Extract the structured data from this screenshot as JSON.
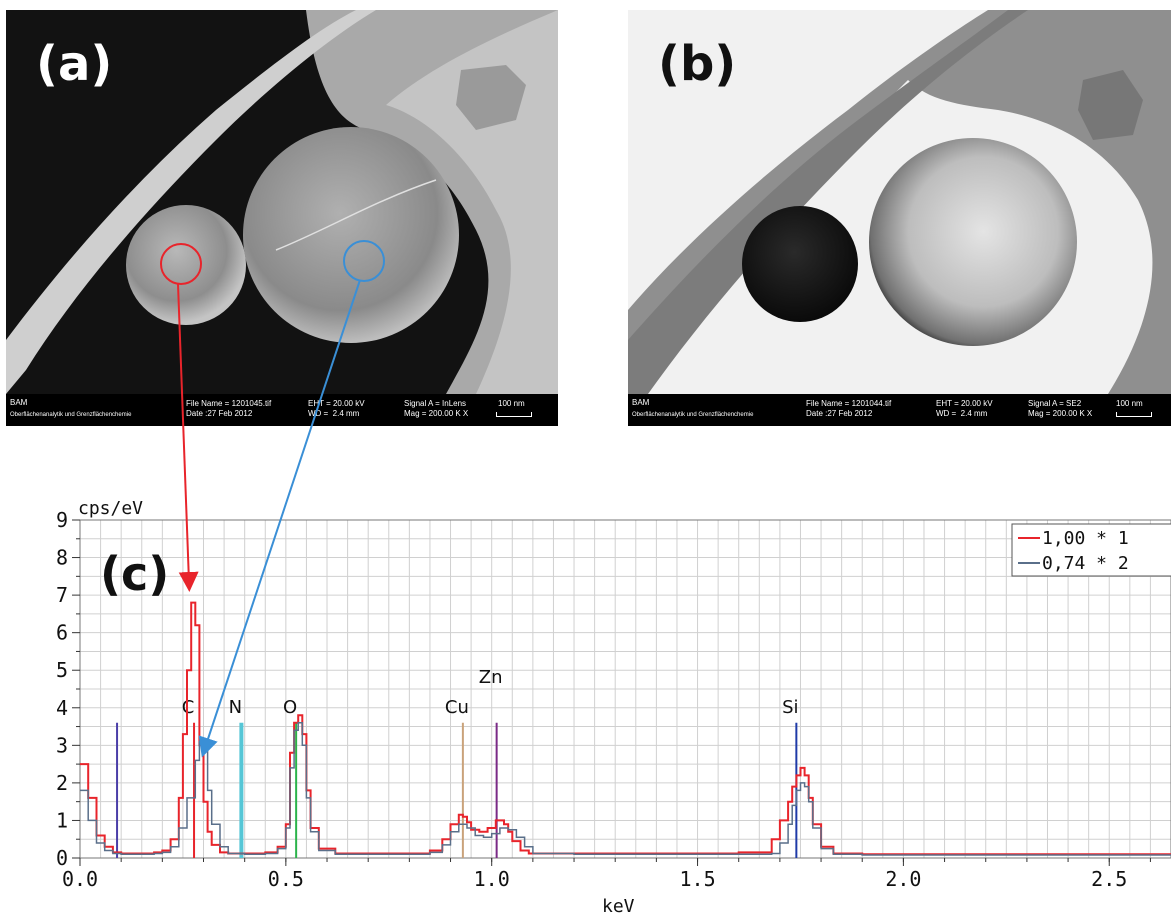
{
  "panels": {
    "a": {
      "label": "(a)",
      "org": "BAM",
      "dept": "Oberflächenanalytik und Grenzflächenchemie",
      "file": "File Name = 1201045.tif",
      "date": "Date :27 Feb 2012",
      "eht": "EHT = 20.00 kV",
      "wd": "WD =  2.4 mm",
      "signal": "Signal A = InLens",
      "mag": "Mag = 200.00 K X",
      "scale": "100 nm"
    },
    "b": {
      "label": "(b)",
      "org": "BAM",
      "dept": "Oberflächenanalytik und Grenzflächenchemie",
      "file": "File Name = 1201044.tif",
      "date": "Date :27 Feb 2012",
      "eht": "EHT = 20.00 kV",
      "wd": "WD =  2.4 mm",
      "signal": "Signal A = SE2",
      "mag": "Mag = 200.00 K X",
      "scale": "100 nm"
    }
  },
  "colors": {
    "spectrum1": "#e8242b",
    "spectrum2": "#5a6f8a",
    "arrow_red": "#e8242b",
    "arrow_blue": "#3a8fd6"
  },
  "chart_data": {
    "type": "line",
    "panel_label": "(c)",
    "ylabel": "cps/eV",
    "xlabel": "keV",
    "xlim": [
      0.0,
      2.65
    ],
    "ylim": [
      0,
      9
    ],
    "xticks": [
      "0.0",
      "0.5",
      "1.0",
      "1.5",
      "2.0",
      "2.5"
    ],
    "yticks": [
      "0",
      "1",
      "2",
      "3",
      "4",
      "5",
      "6",
      "7",
      "8",
      "9"
    ],
    "grid": true,
    "legend_position": "top-right",
    "series": [
      {
        "name": "1,00 * 1",
        "color": "#e8242b",
        "x": [
          0.0,
          0.02,
          0.04,
          0.06,
          0.08,
          0.1,
          0.12,
          0.15,
          0.18,
          0.2,
          0.22,
          0.24,
          0.25,
          0.26,
          0.27,
          0.28,
          0.29,
          0.3,
          0.31,
          0.32,
          0.34,
          0.36,
          0.4,
          0.45,
          0.48,
          0.5,
          0.51,
          0.52,
          0.53,
          0.54,
          0.55,
          0.56,
          0.58,
          0.62,
          0.7,
          0.8,
          0.85,
          0.88,
          0.9,
          0.92,
          0.93,
          0.94,
          0.95,
          0.97,
          0.99,
          1.01,
          1.03,
          1.04,
          1.05,
          1.07,
          1.09,
          1.12,
          1.2,
          1.4,
          1.6,
          1.68,
          1.7,
          1.72,
          1.73,
          1.74,
          1.75,
          1.76,
          1.77,
          1.78,
          1.8,
          1.83,
          1.9,
          2.2,
          2.5,
          2.65
        ],
        "y": [
          2.5,
          1.6,
          0.6,
          0.3,
          0.15,
          0.12,
          0.12,
          0.12,
          0.15,
          0.2,
          0.5,
          1.6,
          3.3,
          5.0,
          6.8,
          6.2,
          3.0,
          1.5,
          0.7,
          0.35,
          0.15,
          0.12,
          0.12,
          0.15,
          0.3,
          0.9,
          2.8,
          3.6,
          3.8,
          3.3,
          1.8,
          0.8,
          0.25,
          0.12,
          0.12,
          0.12,
          0.2,
          0.5,
          0.9,
          1.15,
          1.1,
          0.95,
          0.75,
          0.7,
          0.8,
          1.0,
          0.9,
          0.7,
          0.45,
          0.2,
          0.12,
          0.12,
          0.12,
          0.12,
          0.15,
          0.5,
          1.0,
          1.5,
          1.9,
          2.2,
          2.4,
          2.2,
          1.6,
          0.9,
          0.3,
          0.12,
          0.1,
          0.1,
          0.1,
          0.1
        ]
      },
      {
        "name": "0,74 * 2",
        "color": "#5a6f8a",
        "x": [
          0.0,
          0.02,
          0.04,
          0.06,
          0.08,
          0.1,
          0.12,
          0.15,
          0.18,
          0.2,
          0.22,
          0.24,
          0.26,
          0.28,
          0.29,
          0.3,
          0.31,
          0.32,
          0.34,
          0.36,
          0.4,
          0.45,
          0.48,
          0.5,
          0.51,
          0.52,
          0.53,
          0.54,
          0.55,
          0.56,
          0.58,
          0.62,
          0.7,
          0.8,
          0.85,
          0.88,
          0.9,
          0.92,
          0.94,
          0.96,
          0.98,
          1.0,
          1.02,
          1.04,
          1.06,
          1.08,
          1.1,
          1.2,
          1.4,
          1.6,
          1.68,
          1.7,
          1.72,
          1.73,
          1.74,
          1.75,
          1.76,
          1.77,
          1.78,
          1.8,
          1.83,
          1.9,
          2.2,
          2.5,
          2.65
        ],
        "y": [
          1.8,
          1.0,
          0.4,
          0.2,
          0.12,
          0.1,
          0.1,
          0.1,
          0.12,
          0.15,
          0.3,
          0.8,
          1.6,
          2.6,
          3.1,
          2.9,
          1.8,
          0.9,
          0.3,
          0.12,
          0.1,
          0.12,
          0.25,
          0.8,
          2.4,
          3.4,
          3.6,
          3.0,
          1.6,
          0.7,
          0.2,
          0.1,
          0.1,
          0.1,
          0.15,
          0.35,
          0.7,
          0.9,
          0.8,
          0.6,
          0.55,
          0.65,
          0.8,
          0.75,
          0.55,
          0.3,
          0.12,
          0.1,
          0.1,
          0.1,
          0.12,
          0.4,
          0.9,
          1.4,
          1.8,
          2.0,
          1.9,
          1.5,
          0.8,
          0.25,
          0.1,
          0.08,
          0.08,
          0.08,
          0.08
        ]
      }
    ],
    "element_lines": [
      {
        "label": "C",
        "x": 0.277,
        "height": 3.6,
        "color": "#e8242b"
      },
      {
        "label": "N",
        "x": 0.392,
        "height": 3.6,
        "color": "#56c6d6"
      },
      {
        "label": "O",
        "x": 0.525,
        "height": 3.6,
        "color": "#2bb34a"
      },
      {
        "label": "Cu",
        "x": 0.93,
        "height": 3.6,
        "color": "#c9a27a"
      },
      {
        "label": "Zn",
        "x": 1.012,
        "height": 3.6,
        "color": "#7a2a86"
      },
      {
        "label": "Si",
        "x": 1.74,
        "height": 3.6,
        "color": "#1f3aa8"
      }
    ],
    "unlabeled_lines": [
      {
        "x": 0.09,
        "height": 3.6,
        "color": "#4a3ea8"
      }
    ]
  }
}
